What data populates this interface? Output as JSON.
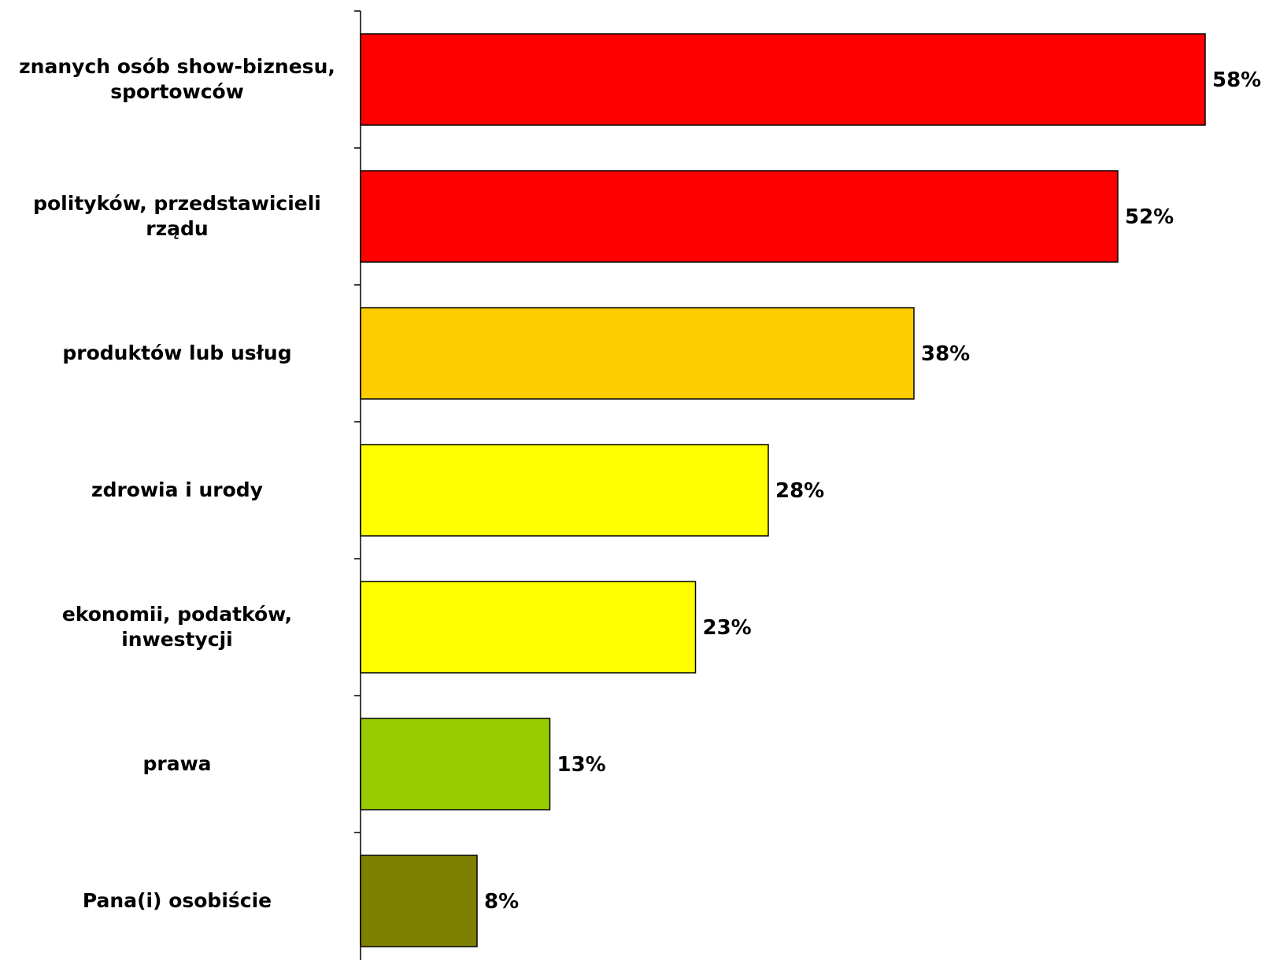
{
  "chart_data": {
    "type": "bar",
    "orientation": "horizontal",
    "categories": [
      [
        "znanych osób show-biznesu,",
        "sportowców"
      ],
      [
        "polityków, przedstawicieli",
        "rządu"
      ],
      [
        "produktów lub usług"
      ],
      [
        "zdrowia i urody"
      ],
      [
        "ekonomii, podatków,",
        "inwestycji"
      ],
      [
        "prawa"
      ],
      [
        "Pana(i) osobiście"
      ]
    ],
    "values": [
      58,
      52,
      38,
      28,
      23,
      13,
      8
    ],
    "value_labels": [
      "58%",
      "52%",
      "38%",
      "28%",
      "23%",
      "13%",
      "8%"
    ],
    "bar_colors": [
      "#ff0000",
      "#ff0000",
      "#ffcc00",
      "#ffff00",
      "#ffff00",
      "#99cc00",
      "#808000"
    ],
    "value_unit": "%",
    "grid": false,
    "legend": "none"
  }
}
